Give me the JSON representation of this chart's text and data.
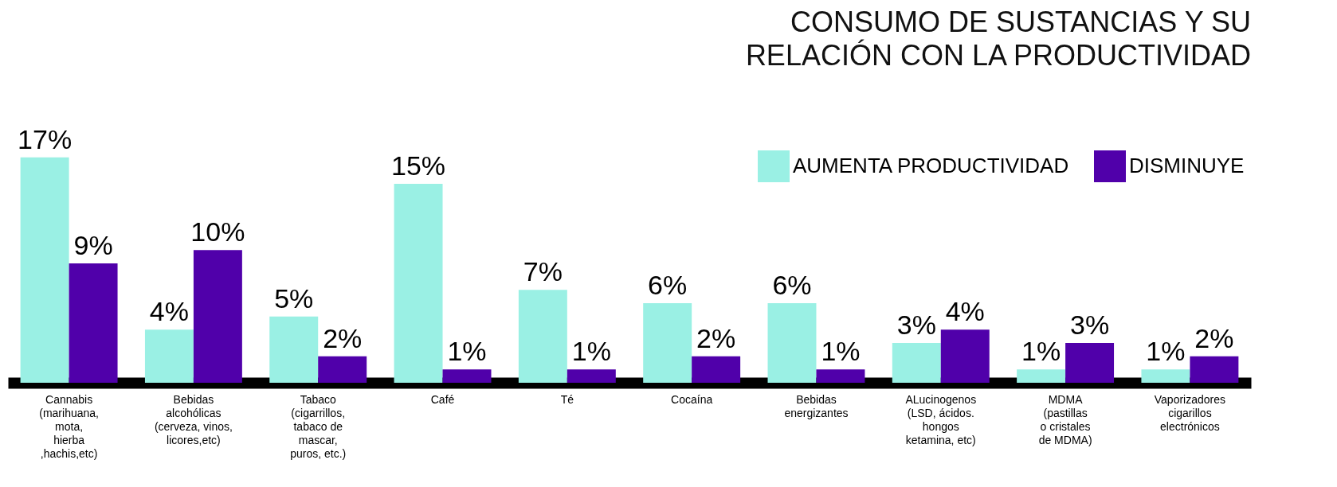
{
  "chart_data": {
    "type": "bar",
    "title": "CONSUMO DE SUSTANCIAS Y SU\nRELACIÓN  CON LA PRODUCTIVIDAD",
    "categories": [
      "Cannabis\n(marihuana,\nmota,\nhierba\n,hachis,etc)",
      "Bebidas\nalcohólicas\n(cerveza, vinos,\nlicores,etc)",
      "Tabaco\n(cigarrillos,\ntabaco de\nmascar,\npuros, etc.)",
      "Café",
      "Té",
      "Cocaína",
      "Bebidas\nenergizantes",
      "ALucinogenos\n(LSD, ácidos.\nhongos\nketamina, etc)",
      "MDMA\n(pastillas\no cristales\nde MDMA)",
      "Vaporizadores\ncigarillos\nelectrónicos"
    ],
    "series": [
      {
        "name": "AUMENTA PRODUCTIVIDAD",
        "color": "#9af0e4",
        "values": [
          17,
          4,
          5,
          15,
          7,
          6,
          6,
          3,
          1,
          1
        ],
        "value_labels": [
          "17%",
          "4%",
          "5%",
          "15%",
          "7%",
          "6%",
          "6%",
          "3%",
          "1%",
          "1%"
        ]
      },
      {
        "name": "DISMINUYE",
        "color": "#5000aa",
        "values": [
          9,
          10,
          2,
          1,
          1,
          2,
          1,
          4,
          3,
          2
        ],
        "value_labels": [
          "9%",
          "10%",
          "2%",
          "1%",
          "1%",
          "2%",
          "1%",
          "4%",
          "3%",
          "2%"
        ]
      }
    ],
    "tick_labels": "x",
    "grid": false,
    "legend": "top right"
  }
}
